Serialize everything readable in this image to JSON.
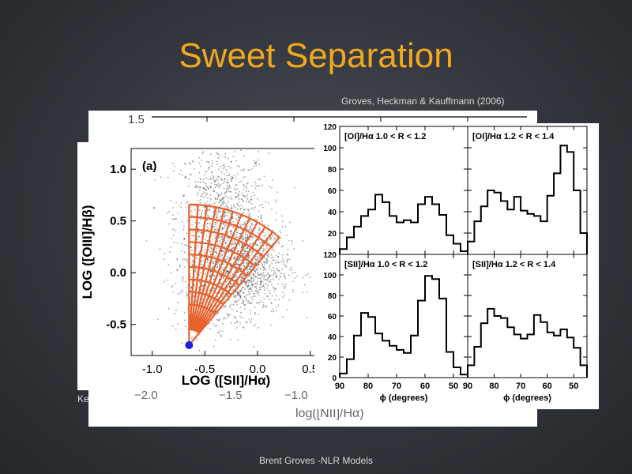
{
  "slide": {
    "title": "Sweet Separation",
    "citation": "Groves, Heckman & Kauffmann (2006)",
    "footer": "Brent Groves -NLR Models"
  },
  "back_plot": {
    "visible_ytick": "1.5",
    "xticks": [
      "−2.0",
      "−1.5",
      "−1.0"
    ],
    "xlabel": "log([NII]/Hα)",
    "clipped_text": "Ke"
  },
  "colors": {
    "title": "#f2a81d",
    "arcs": "#e8612c",
    "origin_point": "#1a22e0"
  },
  "chart_data": [
    {
      "type": "scatter",
      "panel_label": "(a)",
      "xlabel": "LOG ([SII]/Hα)",
      "ylabel": "LOG ([OIII]/Hβ)",
      "xticks": [
        "-1.0",
        "-0.5",
        "0.0",
        "0.5"
      ],
      "yticks": [
        "1.0",
        "0.5",
        "0.0",
        "-0.5"
      ],
      "xlim": [
        -1.2,
        0.6
      ],
      "ylim": [
        -0.8,
        1.2
      ],
      "origin": [
        -0.65,
        -0.7
      ],
      "radial_lines": 12,
      "arcs": 11,
      "ray_angle_range_deg": [
        50,
        90
      ]
    },
    {
      "type": "histogram-grid",
      "xlabel": "ϕ (degrees)",
      "xticks": [
        "90",
        "80",
        "70",
        "60",
        "50"
      ],
      "yticks": [
        "0",
        "20",
        "40",
        "60",
        "80",
        "100",
        "120"
      ],
      "xlim": [
        90,
        45
      ],
      "ylim": [
        0,
        120
      ],
      "bin_centers": [
        88.75,
        86.25,
        83.75,
        81.25,
        78.75,
        76.25,
        73.75,
        71.25,
        68.75,
        66.25,
        63.75,
        61.25,
        58.75,
        56.25,
        53.75,
        51.25,
        48.75,
        46.25
      ],
      "panels": [
        {
          "label": "[OI]/Hα  1.0 < R < 1.2",
          "values": [
            5,
            16,
            26,
            36,
            42,
            56,
            49,
            36,
            30,
            32,
            30,
            47,
            54,
            47,
            37,
            18,
            10,
            3
          ]
        },
        {
          "label": "[OI]/Hα  1.2 < R < 1.4",
          "values": [
            12,
            31,
            45,
            60,
            58,
            50,
            42,
            54,
            41,
            38,
            36,
            31,
            55,
            76,
            102,
            96,
            60,
            20
          ]
        },
        {
          "label": "[SII]/Hα  1.0 < R < 1.2",
          "values": [
            4,
            18,
            41,
            63,
            59,
            43,
            36,
            31,
            27,
            24,
            41,
            75,
            99,
            96,
            77,
            25,
            10,
            3
          ]
        },
        {
          "label": "[SII]/Hα  1.2 < R < 1.4",
          "values": [
            12,
            30,
            53,
            67,
            60,
            58,
            49,
            42,
            38,
            42,
            61,
            54,
            44,
            41,
            47,
            39,
            29,
            12
          ]
        }
      ]
    }
  ]
}
